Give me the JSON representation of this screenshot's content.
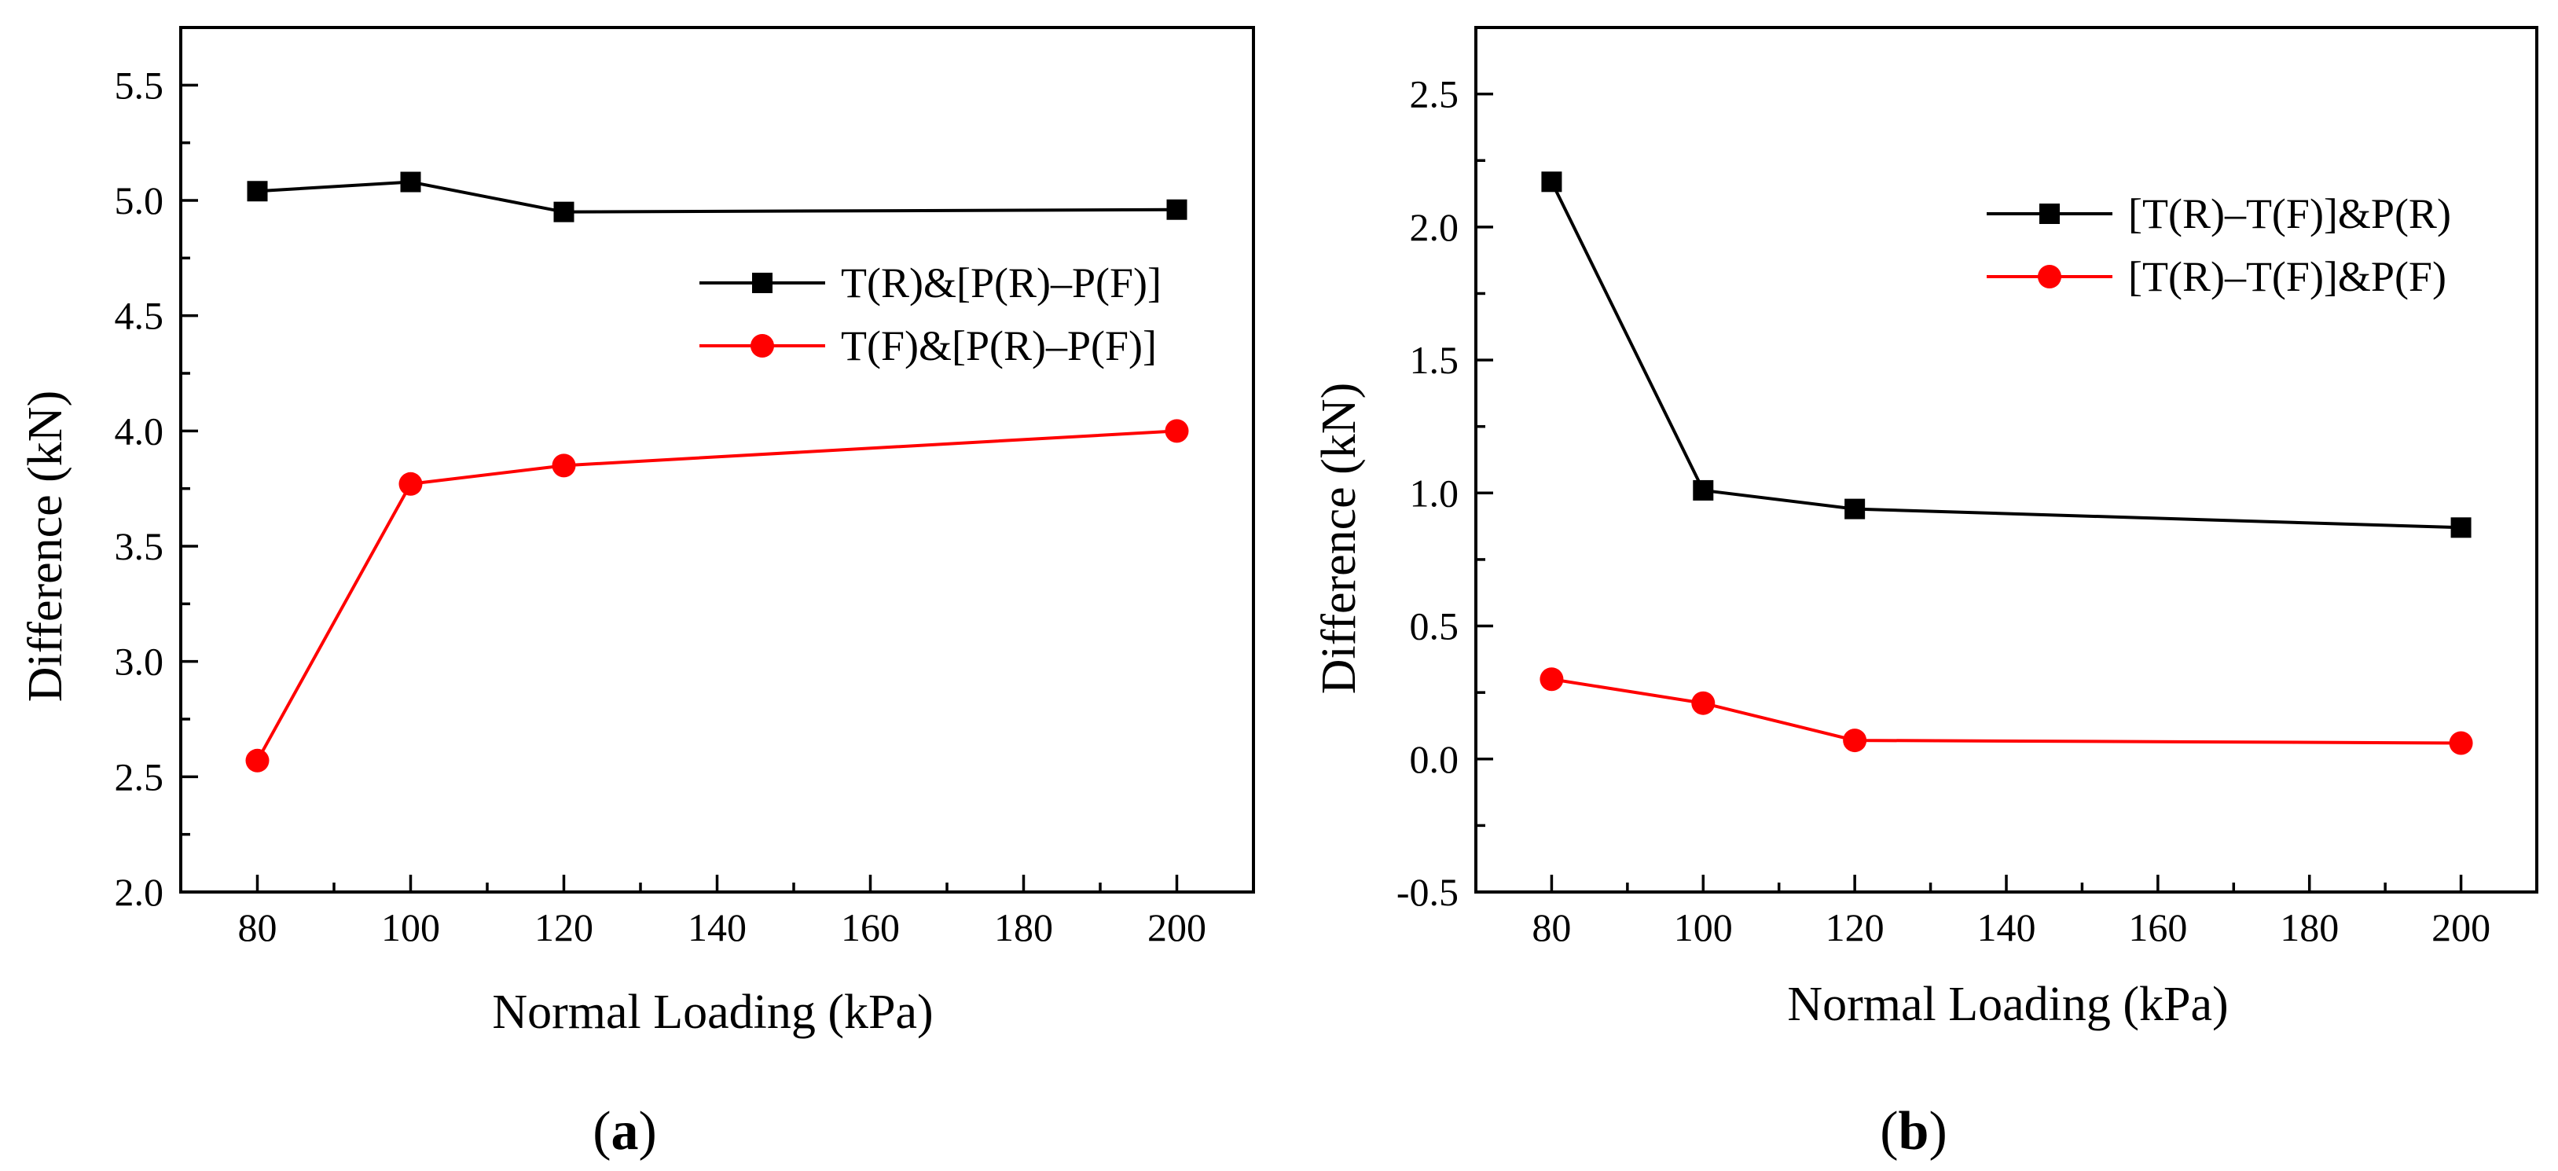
{
  "chart_data": [
    {
      "type": "line",
      "panel_label": "a",
      "xlabel": "Normal Loading (kPa)",
      "ylabel": "Difference (kN)",
      "xlim": [
        70,
        210
      ],
      "ylim": [
        2.0,
        5.75
      ],
      "xticks": [
        80,
        100,
        120,
        140,
        160,
        180,
        200
      ],
      "yticks": [
        2.0,
        2.5,
        3.0,
        3.5,
        4.0,
        4.5,
        5.0,
        5.5
      ],
      "ytick_labels": [
        "2.0",
        "2.5",
        "3.0",
        "3.5",
        "4.0",
        "4.5",
        "5.0",
        "5.5"
      ],
      "legend_position": "center-right",
      "series": [
        {
          "name": "T(R)&[P(R)–P(F)]",
          "color": "#000000",
          "marker": "square",
          "x": [
            80,
            100,
            120,
            200
          ],
          "values": [
            5.04,
            5.08,
            4.95,
            4.96
          ]
        },
        {
          "name": "T(F)&[P(R)–P(F)]",
          "color": "#ff0000",
          "marker": "circle",
          "x": [
            80,
            100,
            120,
            200
          ],
          "values": [
            2.57,
            3.77,
            3.85,
            4.0
          ]
        }
      ]
    },
    {
      "type": "line",
      "panel_label": "b",
      "xlabel": "Normal Loading (kPa)",
      "ylabel": "Difference (kN)",
      "xlim": [
        70,
        210
      ],
      "ylim": [
        -0.5,
        2.75
      ],
      "xticks": [
        80,
        100,
        120,
        140,
        160,
        180,
        200
      ],
      "yticks": [
        -0.5,
        0.0,
        0.5,
        1.0,
        1.5,
        2.0,
        2.5
      ],
      "ytick_labels": [
        "-0.5",
        "0.0",
        "0.5",
        "1.0",
        "1.5",
        "2.0",
        "2.5"
      ],
      "legend_position": "top-right",
      "series": [
        {
          "name": "[T(R)–T(F)]&P(R)",
          "color": "#000000",
          "marker": "square",
          "x": [
            80,
            100,
            120,
            200
          ],
          "values": [
            2.17,
            1.01,
            0.94,
            0.87
          ]
        },
        {
          "name": "[T(R)–T(F)]&P(F)",
          "color": "#ff0000",
          "marker": "circle",
          "x": [
            80,
            100,
            120,
            200
          ],
          "values": [
            0.3,
            0.21,
            0.07,
            0.06
          ]
        }
      ]
    }
  ]
}
